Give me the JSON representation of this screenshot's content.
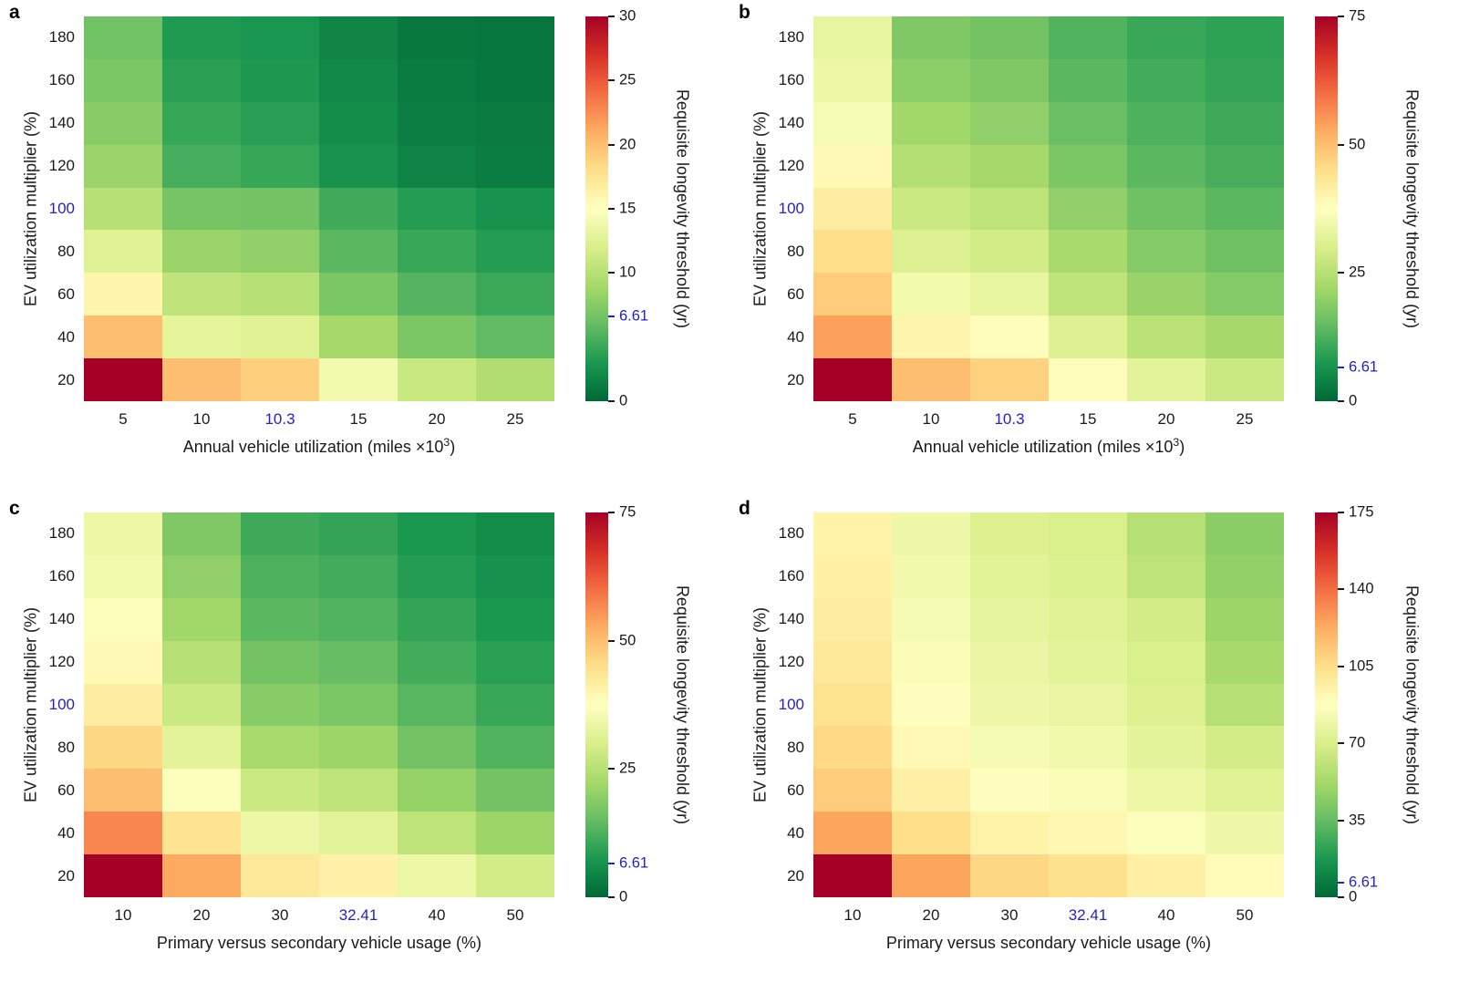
{
  "figure": {
    "background": "#ffffff",
    "accent_blue": "#2222cc",
    "text_color": "#1a1a1a",
    "colormap_name": "red-yellow-green-reversed",
    "colormap_stops": [
      "#006837",
      "#1a9850",
      "#66bd63",
      "#a6d96a",
      "#d9ef8b",
      "#ffffbf",
      "#fee08b",
      "#fdae61",
      "#f46d43",
      "#d73027",
      "#a50026"
    ]
  },
  "chart_data": [
    {
      "type": "heatmap",
      "panel_label": "a",
      "ylabel": "EV utilization multiplier (%)",
      "xlabel_prefix": "Annual vehicle utilization (miles ×10",
      "xlabel_sup": "3",
      "xlabel_suffix": ")",
      "colorbar_label": "Requisite longevity threshold (yr)",
      "x_ticks": [
        "5",
        "10",
        "10.3",
        "15",
        "20",
        "25"
      ],
      "x_highlight": "10.3",
      "y_ticks": [
        "180",
        "160",
        "140",
        "120",
        "100",
        "80",
        "60",
        "40",
        "20"
      ],
      "y_highlight": "100",
      "vmin": 0,
      "vmax": 30,
      "colorbar_ticks": [
        {
          "label": "30",
          "value": 30,
          "highlight": false
        },
        {
          "label": "25",
          "value": 25,
          "highlight": false
        },
        {
          "label": "20",
          "value": 20,
          "highlight": false
        },
        {
          "label": "15",
          "value": 15,
          "highlight": false
        },
        {
          "label": "10",
          "value": 10,
          "highlight": false
        },
        {
          "label": "6.61",
          "value": 6.61,
          "highlight": true
        },
        {
          "label": "0",
          "value": 0,
          "highlight": false
        }
      ],
      "values": [
        [
          6.5,
          3.2,
          2.8,
          1.8,
          1.0,
          0.8
        ],
        [
          7.0,
          3.6,
          3.1,
          2.0,
          1.2,
          0.9
        ],
        [
          7.6,
          4.1,
          3.5,
          2.3,
          1.4,
          1.1
        ],
        [
          8.5,
          4.7,
          4.1,
          2.7,
          1.7,
          1.3
        ],
        [
          10.0,
          6.8,
          6.61,
          4.5,
          3.4,
          2.7
        ],
        [
          12.5,
          8.5,
          8.0,
          5.6,
          4.2,
          3.4
        ],
        [
          16.0,
          10.5,
          10.0,
          7.0,
          5.3,
          4.3
        ],
        [
          20.0,
          13.0,
          12.5,
          9.0,
          7.0,
          5.8
        ],
        [
          30.0,
          20.0,
          19.0,
          14.0,
          11.0,
          9.5
        ]
      ]
    },
    {
      "type": "heatmap",
      "panel_label": "b",
      "ylabel": "EV utilization multiplier (%)",
      "xlabel_prefix": "Annual vehicle utilization (miles ×10",
      "xlabel_sup": "3",
      "xlabel_suffix": ")",
      "colorbar_label": "Requisite longevity threshold (yr)",
      "x_ticks": [
        "5",
        "10",
        "10.3",
        "15",
        "20",
        "25"
      ],
      "x_highlight": "10.3",
      "y_ticks": [
        "180",
        "160",
        "140",
        "120",
        "100",
        "80",
        "60",
        "40",
        "20"
      ],
      "y_highlight": "100",
      "vmin": 0,
      "vmax": 75,
      "colorbar_ticks": [
        {
          "label": "75",
          "value": 75,
          "highlight": false
        },
        {
          "label": "50",
          "value": 50,
          "highlight": false
        },
        {
          "label": "25",
          "value": 25,
          "highlight": false
        },
        {
          "label": "6.61",
          "value": 6.61,
          "highlight": true
        },
        {
          "label": "0",
          "value": 0,
          "highlight": false
        }
      ],
      "values": [
        [
          33,
          18,
          16.5,
          13,
          10.5,
          9.5
        ],
        [
          34,
          19.5,
          18,
          14,
          11.5,
          10
        ],
        [
          36,
          22,
          20,
          15.5,
          12.5,
          11
        ],
        [
          39,
          24.5,
          22.5,
          17.5,
          14,
          12
        ],
        [
          42,
          28,
          26,
          20,
          16,
          14
        ],
        [
          45,
          31,
          29,
          23,
          18.5,
          16
        ],
        [
          48,
          35,
          33,
          26,
          21,
          18.5
        ],
        [
          54,
          40,
          38,
          31,
          25.5,
          22.5
        ],
        [
          75,
          50,
          47,
          38,
          32,
          28
        ]
      ]
    },
    {
      "type": "heatmap",
      "panel_label": "c",
      "ylabel": "EV utilization multiplier (%)",
      "xlabel_prefix": "Primary versus secondary vehicle usage (%)",
      "xlabel_sup": "",
      "xlabel_suffix": "",
      "colorbar_label": "Requisite longevity threshold (yr)",
      "x_ticks": [
        "10",
        "20",
        "30",
        "32.41",
        "40",
        "50"
      ],
      "x_highlight": "32.41",
      "y_ticks": [
        "180",
        "160",
        "140",
        "120",
        "100",
        "80",
        "60",
        "40",
        "20"
      ],
      "y_highlight": "100",
      "vmin": 0,
      "vmax": 75,
      "colorbar_ticks": [
        {
          "label": "75",
          "value": 75,
          "highlight": false
        },
        {
          "label": "50",
          "value": 50,
          "highlight": false
        },
        {
          "label": "25",
          "value": 25,
          "highlight": false
        },
        {
          "label": "6.61",
          "value": 6.61,
          "highlight": true
        },
        {
          "label": "0",
          "value": 0,
          "highlight": false
        }
      ],
      "values": [
        [
          34,
          18,
          11,
          10,
          7.5,
          5.5
        ],
        [
          35,
          20,
          12.5,
          11.5,
          8.5,
          6.5
        ],
        [
          37,
          22,
          14,
          13,
          10,
          7.5
        ],
        [
          39,
          25,
          16.5,
          15,
          11.5,
          9
        ],
        [
          42,
          28,
          19,
          17.5,
          13.5,
          10.5
        ],
        [
          46,
          32,
          23,
          21.5,
          16.5,
          13
        ],
        [
          50,
          37,
          28,
          26,
          20.5,
          16.5
        ],
        [
          57,
          44,
          34,
          32,
          26,
          21.5
        ],
        [
          75,
          53,
          43,
          41,
          34,
          29
        ]
      ]
    },
    {
      "type": "heatmap",
      "panel_label": "d",
      "ylabel": "EV utilization multiplier (%)",
      "xlabel_prefix": "Primary versus secondary vehicle usage (%)",
      "xlabel_sup": "",
      "xlabel_suffix": "",
      "colorbar_label": "Requisite longevity threshold (yr)",
      "x_ticks": [
        "10",
        "20",
        "30",
        "32.41",
        "40",
        "50"
      ],
      "x_highlight": "32.41",
      "y_ticks": [
        "180",
        "160",
        "140",
        "120",
        "100",
        "80",
        "60",
        "40",
        "20"
      ],
      "y_highlight": "100",
      "vmin": 0,
      "vmax": 175,
      "colorbar_ticks": [
        {
          "label": "175",
          "value": 175,
          "highlight": false
        },
        {
          "label": "140",
          "value": 140,
          "highlight": false
        },
        {
          "label": "105",
          "value": 105,
          "highlight": false
        },
        {
          "label": "70",
          "value": 70,
          "highlight": false
        },
        {
          "label": "35",
          "value": 35,
          "highlight": false
        },
        {
          "label": "6.61",
          "value": 6.61,
          "highlight": true
        },
        {
          "label": "0",
          "value": 0,
          "highlight": false
        }
      ],
      "values": [
        [
          95,
          80,
          72,
          70,
          58,
          45
        ],
        [
          96,
          81,
          74,
          71,
          60,
          47
        ],
        [
          98,
          83,
          76,
          73,
          68,
          50
        ],
        [
          100,
          85,
          78,
          75,
          70,
          53
        ],
        [
          103,
          88,
          80,
          78,
          72,
          58
        ],
        [
          107,
          91,
          83,
          81,
          75,
          68
        ],
        [
          112,
          96,
          88,
          85,
          79,
          73
        ],
        [
          125,
          105,
          95,
          92,
          86,
          80
        ],
        [
          175,
          125,
          108,
          104,
          96,
          90
        ]
      ]
    }
  ]
}
